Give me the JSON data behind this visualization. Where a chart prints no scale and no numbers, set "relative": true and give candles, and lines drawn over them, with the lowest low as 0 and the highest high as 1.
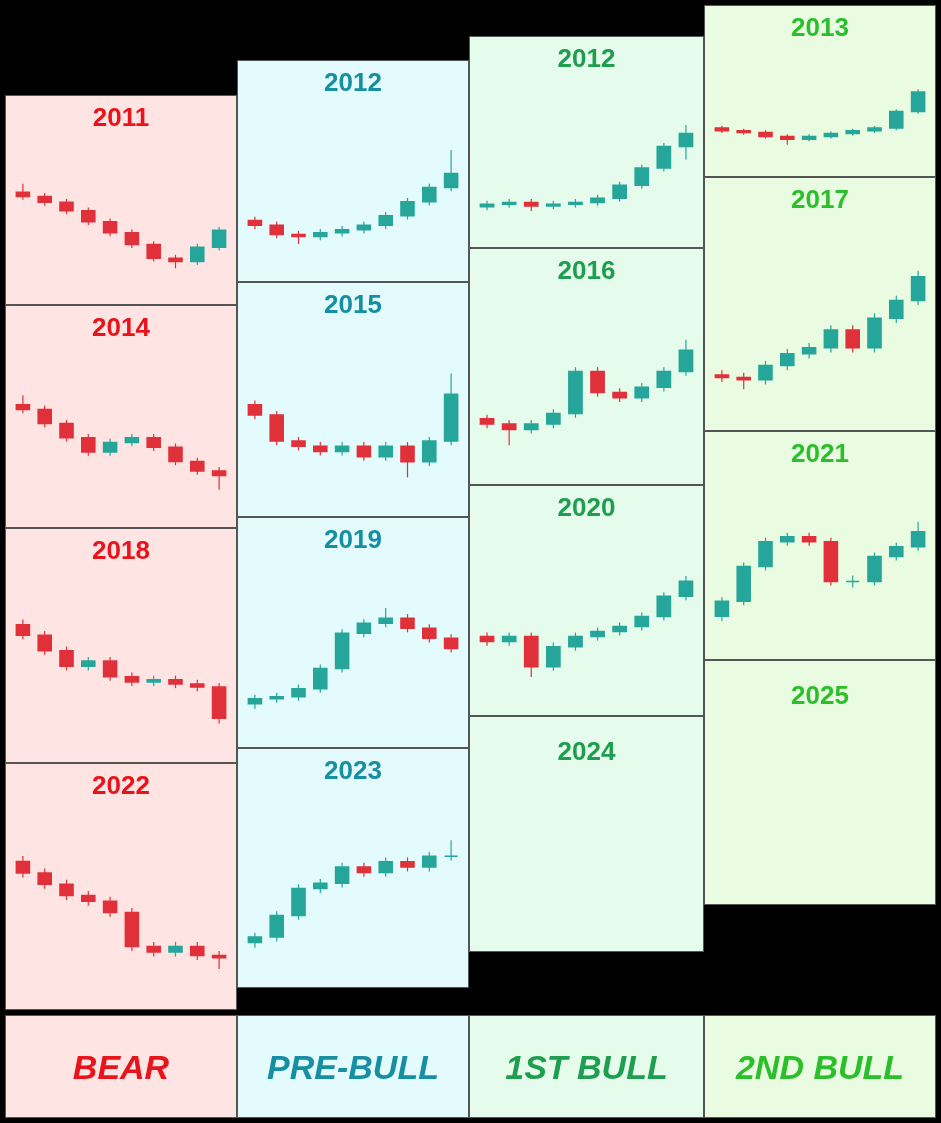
{
  "chart_data": [
    {
      "type": "candlestick",
      "title": "2011",
      "relative": true,
      "categories": [
        null,
        null,
        null,
        null,
        null,
        null,
        null,
        null,
        null,
        null
      ],
      "ohlc": [
        [
          0.9,
          1,
          0.81,
          0.85
        ],
        [
          0.85,
          0.89,
          0.74,
          0.78
        ],
        [
          0.78,
          0.82,
          0.64,
          0.68
        ],
        [
          0.68,
          0.72,
          0.51,
          0.55
        ],
        [
          0.55,
          0.59,
          0.38,
          0.42
        ],
        [
          0.42,
          0.46,
          0.24,
          0.28
        ],
        [
          0.28,
          0.32,
          0.08,
          0.12
        ],
        [
          0.12,
          0.16,
          0,
          0.08
        ],
        [
          0.08,
          0.29,
          0.04,
          0.25
        ],
        [
          0.25,
          0.49,
          0.21,
          0.45
        ]
      ]
    },
    {
      "type": "candlestick",
      "title": "2012",
      "relative": true,
      "categories": [
        null,
        null,
        null,
        null,
        null,
        null,
        null,
        null,
        null,
        null
      ],
      "ohlc": [
        [
          0.25,
          0.29,
          0.16,
          0.2
        ],
        [
          0.2,
          0.24,
          0.06,
          0.1
        ],
        [
          0.1,
          0.14,
          0,
          0.08
        ],
        [
          0.08,
          0.16,
          0.04,
          0.12
        ],
        [
          0.12,
          0.19,
          0.08,
          0.15
        ],
        [
          0.15,
          0.24,
          0.11,
          0.2
        ],
        [
          0.2,
          0.34,
          0.16,
          0.3
        ],
        [
          0.3,
          0.49,
          0.26,
          0.45
        ],
        [
          0.45,
          0.64,
          0.41,
          0.6
        ],
        [
          0.6,
          1,
          0.56,
          0.75
        ]
      ]
    },
    {
      "type": "candlestick",
      "title": "2012",
      "relative": true,
      "categories": [
        null,
        null,
        null,
        null,
        null,
        null,
        null,
        null,
        null,
        null
      ],
      "ohlc": [
        [
          0.05,
          0.12,
          0.01,
          0.08
        ],
        [
          0.08,
          0.14,
          0.04,
          0.1
        ],
        [
          0.1,
          0.14,
          0,
          0.06
        ],
        [
          0.06,
          0.12,
          0.02,
          0.08
        ],
        [
          0.08,
          0.14,
          0.04,
          0.1
        ],
        [
          0.1,
          0.19,
          0.06,
          0.15
        ],
        [
          0.15,
          0.34,
          0.11,
          0.3
        ],
        [
          0.3,
          0.54,
          0.26,
          0.5
        ],
        [
          0.5,
          0.79,
          0.46,
          0.75
        ],
        [
          0.75,
          1,
          0.6,
          0.9
        ]
      ]
    },
    {
      "type": "candlestick",
      "title": "2013",
      "relative": true,
      "categories": [
        null,
        null,
        null,
        null,
        null,
        null,
        null,
        null,
        null,
        null
      ],
      "ohlc": [
        [
          0.3,
          0.34,
          0.21,
          0.25
        ],
        [
          0.25,
          0.29,
          0.18,
          0.22
        ],
        [
          0.22,
          0.26,
          0.11,
          0.15
        ],
        [
          0.15,
          0.19,
          0,
          0.1
        ],
        [
          0.1,
          0.19,
          0.06,
          0.15
        ],
        [
          0.15,
          0.24,
          0.11,
          0.2
        ],
        [
          0.2,
          0.29,
          0.16,
          0.25
        ],
        [
          0.25,
          0.34,
          0.21,
          0.3
        ],
        [
          0.3,
          0.64,
          0.26,
          0.6
        ],
        [
          0.6,
          1,
          0.56,
          0.95
        ]
      ]
    },
    {
      "type": "candlestick",
      "title": "2014",
      "relative": true,
      "categories": [
        null,
        null,
        null,
        null,
        null,
        null,
        null,
        null,
        null,
        null
      ],
      "ohlc": [
        [
          0.9,
          1,
          0.81,
          0.85
        ],
        [
          0.85,
          0.89,
          0.66,
          0.7
        ],
        [
          0.7,
          0.74,
          0.51,
          0.55
        ],
        [
          0.55,
          0.59,
          0.36,
          0.4
        ],
        [
          0.4,
          0.54,
          0.36,
          0.5
        ],
        [
          0.5,
          0.59,
          0.46,
          0.55
        ],
        [
          0.55,
          0.59,
          0.41,
          0.45
        ],
        [
          0.45,
          0.49,
          0.26,
          0.3
        ],
        [
          0.3,
          0.34,
          0.16,
          0.2
        ],
        [
          0.2,
          0.24,
          0,
          0.15
        ]
      ]
    },
    {
      "type": "candlestick",
      "title": "2015",
      "relative": true,
      "categories": [
        null,
        null,
        null,
        null,
        null,
        null,
        null,
        null,
        null,
        null
      ],
      "ohlc": [
        [
          0.7,
          0.74,
          0.56,
          0.6
        ],
        [
          0.6,
          0.64,
          0.31,
          0.35
        ],
        [
          0.35,
          0.39,
          0.26,
          0.3
        ],
        [
          0.3,
          0.34,
          0.21,
          0.25
        ],
        [
          0.25,
          0.34,
          0.21,
          0.3
        ],
        [
          0.3,
          0.34,
          0.16,
          0.2
        ],
        [
          0.2,
          0.34,
          0.16,
          0.3
        ],
        [
          0.3,
          0.34,
          0,
          0.15
        ],
        [
          0.15,
          0.39,
          0.11,
          0.35
        ],
        [
          0.35,
          1,
          0.31,
          0.8
        ]
      ]
    },
    {
      "type": "candlestick",
      "title": "2016",
      "relative": true,
      "categories": [
        null,
        null,
        null,
        null,
        null,
        null,
        null,
        null,
        null,
        null
      ],
      "ohlc": [
        [
          0.25,
          0.29,
          0.16,
          0.2
        ],
        [
          0.2,
          0.24,
          0,
          0.15
        ],
        [
          0.15,
          0.24,
          0.11,
          0.2
        ],
        [
          0.2,
          0.34,
          0.16,
          0.3
        ],
        [
          0.3,
          0.74,
          0.26,
          0.7
        ],
        [
          0.7,
          0.74,
          0.46,
          0.5
        ],
        [
          0.5,
          0.54,
          0.41,
          0.45
        ],
        [
          0.45,
          0.59,
          0.41,
          0.55
        ],
        [
          0.55,
          0.74,
          0.51,
          0.7
        ],
        [
          0.7,
          1,
          0.66,
          0.9
        ]
      ]
    },
    {
      "type": "candlestick",
      "title": "2017",
      "relative": true,
      "categories": [
        null,
        null,
        null,
        null,
        null,
        null,
        null,
        null,
        null,
        null
      ],
      "ohlc": [
        [
          0.12,
          0.16,
          0.06,
          0.1
        ],
        [
          0.1,
          0.14,
          0,
          0.08
        ],
        [
          0.08,
          0.24,
          0.04,
          0.2
        ],
        [
          0.2,
          0.34,
          0.16,
          0.3
        ],
        [
          0.3,
          0.39,
          0.26,
          0.35
        ],
        [
          0.35,
          0.54,
          0.31,
          0.5
        ],
        [
          0.5,
          0.54,
          0.31,
          0.35
        ],
        [
          0.35,
          0.64,
          0.31,
          0.6
        ],
        [
          0.6,
          0.79,
          0.56,
          0.75
        ],
        [
          0.75,
          1,
          0.71,
          0.95
        ]
      ]
    },
    {
      "type": "candlestick",
      "title": "2018",
      "relative": true,
      "categories": [
        null,
        null,
        null,
        null,
        null,
        null,
        null,
        null,
        null,
        null
      ],
      "ohlc": [
        [
          0.95,
          1,
          0.81,
          0.85
        ],
        [
          0.85,
          0.89,
          0.66,
          0.7
        ],
        [
          0.7,
          0.74,
          0.51,
          0.55
        ],
        [
          0.55,
          0.64,
          0.51,
          0.6
        ],
        [
          0.6,
          0.64,
          0.41,
          0.45
        ],
        [
          0.45,
          0.49,
          0.36,
          0.4
        ],
        [
          0.4,
          0.46,
          0.36,
          0.42
        ],
        [
          0.42,
          0.46,
          0.34,
          0.38
        ],
        [
          0.38,
          0.42,
          0.31,
          0.35
        ],
        [
          0.35,
          0.39,
          0,
          0.05
        ]
      ]
    },
    {
      "type": "candlestick",
      "title": "2019",
      "relative": true,
      "categories": [
        null,
        null,
        null,
        null,
        null,
        null,
        null,
        null,
        null,
        null
      ],
      "ohlc": [
        [
          0.05,
          0.14,
          0,
          0.1
        ],
        [
          0.1,
          0.16,
          0.06,
          0.12
        ],
        [
          0.12,
          0.24,
          0.08,
          0.2
        ],
        [
          0.2,
          0.44,
          0.16,
          0.4
        ],
        [
          0.4,
          0.79,
          0.36,
          0.75
        ],
        [
          0.75,
          0.89,
          0.71,
          0.85
        ],
        [
          0.85,
          1,
          0.81,
          0.9
        ],
        [
          0.9,
          0.94,
          0.76,
          0.8
        ],
        [
          0.8,
          0.84,
          0.66,
          0.7
        ],
        [
          0.7,
          0.74,
          0.56,
          0.6
        ]
      ]
    },
    {
      "type": "candlestick",
      "title": "2020",
      "relative": true,
      "categories": [
        null,
        null,
        null,
        null,
        null,
        null,
        null,
        null,
        null,
        null
      ],
      "ohlc": [
        [
          0.4,
          0.44,
          0.31,
          0.35
        ],
        [
          0.35,
          0.44,
          0.31,
          0.4
        ],
        [
          0.4,
          0.44,
          0,
          0.1
        ],
        [
          0.1,
          0.34,
          0.06,
          0.3
        ],
        [
          0.3,
          0.44,
          0.26,
          0.4
        ],
        [
          0.4,
          0.49,
          0.36,
          0.45
        ],
        [
          0.45,
          0.54,
          0.41,
          0.5
        ],
        [
          0.5,
          0.64,
          0.46,
          0.6
        ],
        [
          0.6,
          0.84,
          0.56,
          0.8
        ],
        [
          0.8,
          1,
          0.76,
          0.95
        ]
      ]
    },
    {
      "type": "candlestick",
      "title": "2021",
      "relative": true,
      "categories": [
        null,
        null,
        null,
        null,
        null,
        null,
        null,
        null,
        null,
        null
      ],
      "ohlc": [
        [
          0.05,
          0.24,
          0,
          0.2
        ],
        [
          0.2,
          0.59,
          0.16,
          0.55
        ],
        [
          0.55,
          0.84,
          0.51,
          0.8
        ],
        [
          0.8,
          0.89,
          0.76,
          0.85
        ],
        [
          0.85,
          0.89,
          0.76,
          0.8
        ],
        [
          0.8,
          0.84,
          0.36,
          0.4
        ],
        [
          0.4,
          0.46,
          0.34,
          0.4
        ],
        [
          0.4,
          0.69,
          0.36,
          0.65
        ],
        [
          0.65,
          0.79,
          0.61,
          0.75
        ],
        [
          0.75,
          1,
          0.71,
          0.9
        ]
      ]
    },
    {
      "type": "candlestick",
      "title": "2022",
      "relative": true,
      "categories": [
        null,
        null,
        null,
        null,
        null,
        null,
        null,
        null,
        null,
        null
      ],
      "ohlc": [
        [
          0.95,
          1,
          0.81,
          0.85
        ],
        [
          0.85,
          0.89,
          0.71,
          0.75
        ],
        [
          0.75,
          0.79,
          0.61,
          0.65
        ],
        [
          0.65,
          0.69,
          0.56,
          0.6
        ],
        [
          0.6,
          0.64,
          0.46,
          0.5
        ],
        [
          0.5,
          0.54,
          0.16,
          0.2
        ],
        [
          0.2,
          0.24,
          0.11,
          0.15
        ],
        [
          0.15,
          0.24,
          0.11,
          0.2
        ],
        [
          0.2,
          0.24,
          0.08,
          0.12
        ],
        [
          0.12,
          0.16,
          0,
          0.1
        ]
      ]
    },
    {
      "type": "candlestick",
      "title": "2023",
      "relative": true,
      "categories": [
        null,
        null,
        null,
        null,
        null,
        null,
        null,
        null,
        null,
        null
      ],
      "ohlc": [
        [
          0.05,
          0.14,
          0,
          0.1
        ],
        [
          0.1,
          0.34,
          0.06,
          0.3
        ],
        [
          0.3,
          0.59,
          0.26,
          0.55
        ],
        [
          0.55,
          0.64,
          0.51,
          0.6
        ],
        [
          0.6,
          0.79,
          0.56,
          0.75
        ],
        [
          0.75,
          0.79,
          0.66,
          0.7
        ],
        [
          0.7,
          0.84,
          0.66,
          0.8
        ],
        [
          0.8,
          0.84,
          0.71,
          0.75
        ],
        [
          0.75,
          0.89,
          0.71,
          0.85
        ],
        [
          0.85,
          1,
          0.81,
          0.85
        ]
      ]
    },
    {
      "type": "other",
      "title": "2024"
    },
    {
      "type": "other",
      "title": "2025"
    },
    {
      "type": "other",
      "title": "BEAR"
    },
    {
      "type": "other",
      "title": "PRE-BULL"
    },
    {
      "type": "other",
      "title": "1ST BULL"
    },
    {
      "type": "other",
      "title": "2ND BULL"
    }
  ]
}
